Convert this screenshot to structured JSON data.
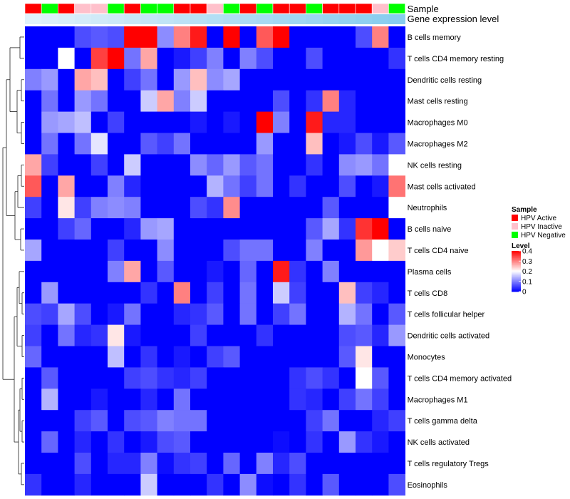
{
  "chart_data": {
    "type": "heatmap",
    "title": "",
    "annotation_rows": {
      "sample_label": "Sample",
      "expression_label": "Gene expression level",
      "sample_categories": [
        "HPV Active",
        "HPV Negative",
        "HPV Active",
        "HPV Inactive",
        "HPV Inactive",
        "HPV Negative",
        "HPV Active",
        "HPV Negative",
        "HPV Negative",
        "HPV Active",
        "HPV Active",
        "HPV Inactive",
        "HPV Negative",
        "HPV Active",
        "HPV Negative",
        "HPV Active",
        "HPV Active",
        "HPV Negative",
        "HPV Active",
        "HPV Active",
        "HPV Active",
        "HPV Inactive",
        "HPV Negative"
      ],
      "expression_values": [
        0.02,
        0.05,
        0.08,
        0.11,
        0.14,
        0.17,
        0.2,
        0.23,
        0.26,
        0.29,
        0.32,
        0.35,
        0.38,
        0.41,
        0.44,
        0.47,
        0.5,
        0.53,
        0.56,
        0.59,
        0.62,
        0.65,
        0.68
      ]
    },
    "row_labels": [
      "B cells memory",
      "T cells CD4 memory resting",
      "Dendritic cells resting",
      "Mast cells resting",
      "Macrophages M0",
      "Macrophages M2",
      "NK cells resting",
      "Mast cells activated",
      "Neutrophils",
      "B cells naive",
      "T cells CD4 naive",
      "Plasma cells",
      "T cells CD8",
      "T cells follicular helper",
      "Dendritic cells activated",
      "Monocytes",
      "T cells CD4 memory activated",
      "Macrophages M1",
      "T cells gamma delta",
      "NK cells activated",
      "T cells regulatory  Tregs",
      "Eosinophils"
    ],
    "values": [
      [
        0,
        0,
        0,
        0.06,
        0.07,
        0.06,
        0.4,
        0.4,
        0.11,
        0.3,
        0.38,
        0,
        0.4,
        0,
        0.33,
        0.4,
        0,
        0,
        0,
        0,
        0.06,
        0.3,
        0
      ],
      [
        0,
        0,
        0.2,
        0,
        0.35,
        0.4,
        0.09,
        0.27,
        0,
        0.02,
        0.05,
        0.1,
        0,
        0.1,
        0.06,
        0,
        0,
        0.06,
        0,
        0,
        0,
        0,
        0.04
      ],
      [
        0.1,
        0.12,
        0,
        0.27,
        0.25,
        0,
        0.05,
        0.09,
        0,
        0.12,
        0.25,
        0.11,
        0.13,
        0,
        0,
        0,
        0,
        0,
        0,
        0,
        0,
        0,
        0
      ],
      [
        0,
        0.09,
        0,
        0.12,
        0.09,
        0,
        0,
        0.16,
        0.27,
        0.1,
        0.16,
        0,
        0,
        0,
        0,
        0.06,
        0,
        0.04,
        0.3,
        0.03,
        0,
        0,
        0
      ],
      [
        0,
        0.12,
        0.13,
        0.15,
        0,
        0.05,
        0,
        0,
        0,
        0,
        0.02,
        0,
        0.02,
        0,
        0.4,
        0.1,
        0,
        0.38,
        0.03,
        0.03,
        0,
        0,
        0
      ],
      [
        0,
        0.09,
        0,
        0.09,
        0.18,
        0,
        0,
        0.07,
        0.05,
        0.09,
        0,
        0,
        0,
        0,
        0.12,
        0,
        0,
        0.25,
        0,
        0.02,
        0.06,
        0.02,
        0.07
      ],
      [
        0.27,
        0.05,
        0,
        0,
        0.05,
        0,
        0.16,
        0,
        0,
        0,
        0.11,
        0.08,
        0.12,
        0.07,
        0.09,
        0,
        0,
        0.04,
        0,
        0.11,
        0.12,
        0.09,
        0.2
      ],
      [
        0.33,
        0,
        0.27,
        0,
        0,
        0.1,
        0.03,
        0,
        0,
        0,
        0,
        0.14,
        0.09,
        0.05,
        0.09,
        0,
        0.04,
        0,
        0,
        0.06,
        0,
        0.02,
        0.31
      ],
      [
        0.05,
        0,
        0.22,
        0.05,
        0.1,
        0.11,
        0.1,
        0,
        0,
        0,
        0.06,
        0.04,
        0.29,
        0,
        0,
        0,
        0,
        0,
        0.07,
        0,
        0,
        0,
        0.2
      ],
      [
        0,
        0,
        0.05,
        0.08,
        0,
        0,
        0.03,
        0.12,
        0.13,
        0,
        0,
        0,
        0,
        0,
        0,
        0,
        0,
        0.07,
        0.13,
        0.04,
        0.36,
        0.4,
        0
      ],
      [
        0.13,
        0,
        0,
        0,
        0,
        0.05,
        0,
        0,
        0.11,
        0,
        0,
        0,
        0.06,
        0.09,
        0.09,
        0,
        0,
        0.1,
        0,
        0,
        0.28,
        0.2,
        0.24
      ],
      [
        0,
        0,
        0,
        0,
        0,
        0.1,
        0.27,
        0,
        0.07,
        0,
        0,
        0.02,
        0,
        0.08,
        0,
        0.38,
        0.04,
        0,
        0.1,
        0,
        0,
        0,
        0
      ],
      [
        0,
        0.12,
        0,
        0,
        0,
        0,
        0,
        0.04,
        0,
        0.3,
        0,
        0.05,
        0,
        0.09,
        0,
        0.16,
        0.05,
        0,
        0,
        0.25,
        0.05,
        0.03,
        0
      ],
      [
        0.06,
        0.05,
        0.13,
        0.06,
        0,
        0.02,
        0.09,
        0,
        0,
        0.03,
        0.04,
        0.07,
        0,
        0.09,
        0,
        0.05,
        0.09,
        0,
        0,
        0.14,
        0.09,
        0,
        0.07
      ],
      [
        0.05,
        0,
        0.09,
        0.03,
        0.04,
        0.22,
        0.02,
        0,
        0,
        0,
        0.05,
        0,
        0,
        0,
        0.04,
        0,
        0,
        0,
        0,
        0.06,
        0.07,
        0.03,
        0.12
      ],
      [
        0.08,
        0,
        0,
        0,
        0,
        0.15,
        0,
        0.04,
        0,
        0.02,
        0,
        0.05,
        0.07,
        0,
        0,
        0,
        0,
        0,
        0,
        0.07,
        0.22,
        0,
        0
      ],
      [
        0,
        0.07,
        0,
        0,
        0,
        0,
        0.05,
        0.06,
        0.04,
        0.03,
        0.05,
        0,
        0,
        0,
        0,
        0,
        0.04,
        0.06,
        0.04,
        0,
        0.2,
        0.07,
        0
      ],
      [
        0,
        0.14,
        0,
        0,
        0.02,
        0,
        0,
        0.03,
        0,
        0.09,
        0,
        0,
        0,
        0,
        0,
        0,
        0.04,
        0.03,
        0,
        0.05,
        0.09,
        0.05,
        0
      ],
      [
        0,
        0,
        0,
        0.05,
        0.07,
        0,
        0.06,
        0.07,
        0.1,
        0.09,
        0.09,
        0,
        0,
        0,
        0,
        0,
        0,
        0.05,
        0.09,
        0,
        0,
        0.03,
        0.05
      ],
      [
        0,
        0.08,
        0,
        0.03,
        0,
        0.04,
        0,
        0.02,
        0.06,
        0.07,
        0,
        0,
        0,
        0,
        0,
        0.01,
        0,
        0.04,
        0,
        0.12,
        0.04,
        0.02,
        0
      ],
      [
        0,
        0,
        0,
        0.06,
        0,
        0.03,
        0.03,
        0.1,
        0.01,
        0.04,
        0.05,
        0,
        0.08,
        0,
        0.1,
        0.03,
        0.06,
        0,
        0,
        0,
        0,
        0,
        0
      ],
      [
        0.04,
        0,
        0,
        0.03,
        0,
        0,
        0,
        0.16,
        0,
        0,
        0,
        0.04,
        0,
        0.11,
        0.01,
        0,
        0.04,
        0,
        0.07,
        0,
        0,
        0,
        0.06
      ]
    ],
    "color_scale": {
      "min": 0,
      "max": 0.4,
      "low": "#0000ff",
      "mid": "#ffffff",
      "high": "#ff0000"
    },
    "legend_sample": {
      "title": "Sample",
      "items": [
        {
          "label": "HPV Active",
          "color": "#ff0000"
        },
        {
          "label": "HPV Inactive",
          "color": "#ffc0cb"
        },
        {
          "label": "HPV Negative",
          "color": "#00ff00"
        }
      ]
    },
    "legend_level": {
      "title": "Level",
      "ticks": [
        {
          "value": 0.4,
          "label": "0.4"
        },
        {
          "value": 0.3,
          "label": "0.3"
        },
        {
          "value": 0.2,
          "label": "0.2"
        },
        {
          "value": 0.1,
          "label": "0.1"
        },
        {
          "value": 0,
          "label": "0"
        }
      ]
    },
    "expression_scale": {
      "low": "#e3f2fb",
      "high": "#5bbbe9"
    }
  }
}
